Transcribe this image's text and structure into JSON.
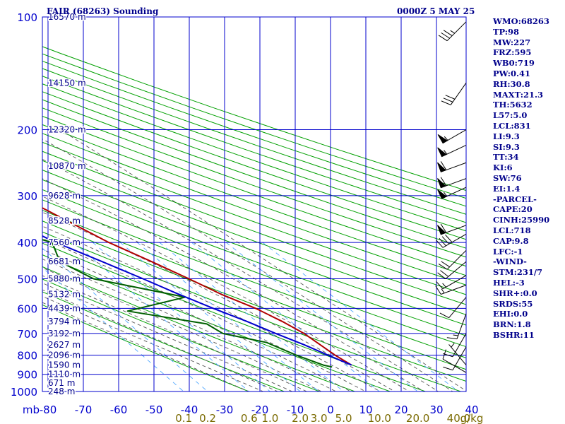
{
  "header": {
    "title": "FAIR (68263) Sounding",
    "timestamp": "0000Z  5 MAY 25"
  },
  "indices": [
    "WMO:68263",
    "TP:98",
    "MW:227",
    "FRZ:595",
    "WB0:719",
    "PW:0.41",
    "RH:30.8",
    "MAXT:21.3",
    "TH:5632",
    "L57:5.0",
    "LCL:831",
    "LI:9.3",
    "SI:9.3",
    "TT:34",
    "KI:6",
    "SW:76",
    "EI:1.4",
    "-PARCEL-",
    "CAPE:20",
    "CINH:25990",
    "LCL:718",
    "CAP:9.8",
    "LFC:-1",
    "-WIND-",
    "STM:231/7",
    "HEL:-3",
    "SHR+:0.0",
    "SRDS:55",
    "EHI:0.0",
    "BRN:1.8",
    "BSHR:11"
  ],
  "colors": {
    "grid": "#0000cd",
    "dry_adiabat": "#00a000",
    "moist_adiabat": "#555555",
    "mixing_ratio": "#4da6ff",
    "temperature": "#b00000",
    "dewpoint": "#006000",
    "parcel": "#0000cc",
    "text": "#00008b",
    "mixing_label": "#7a6a00"
  },
  "chart_data": {
    "type": "skew-t",
    "x_unit_label": "mb",
    "temperature_ticks": [
      -80,
      -70,
      -60,
      -50,
      -40,
      -30,
      -20,
      -10,
      0,
      10,
      20,
      30,
      40
    ],
    "temperature_tick_labels": [
      "-80",
      "-70",
      "-60",
      "-50",
      "-40",
      "-30",
      "-20",
      "-10",
      "0",
      "10",
      "20",
      "30",
      "40"
    ],
    "pressure_ticks": [
      100,
      200,
      300,
      400,
      500,
      600,
      700,
      800,
      900,
      1000
    ],
    "pressure_tick_labels": [
      "100",
      "200",
      "300",
      "400",
      "500",
      "600",
      "700",
      "800",
      "900",
      "1000"
    ],
    "pressure_range_mb": [
      100,
      1000
    ],
    "height_labels": [
      {
        "p": 100,
        "label": "16570 m"
      },
      {
        "p": 150,
        "label": "14150 m"
      },
      {
        "p": 200,
        "label": "12320 m"
      },
      {
        "p": 250,
        "label": "10870 m"
      },
      {
        "p": 300,
        "label": "9628 m"
      },
      {
        "p": 350,
        "label": "8528 m"
      },
      {
        "p": 400,
        "label": "7560 m"
      },
      {
        "p": 450,
        "label": "6681 m"
      },
      {
        "p": 500,
        "label": "5880 m"
      },
      {
        "p": 550,
        "label": "5132 m"
      },
      {
        "p": 600,
        "label": "4439 m"
      },
      {
        "p": 650,
        "label": "3794 m"
      },
      {
        "p": 700,
        "label": "3192 m"
      },
      {
        "p": 750,
        "label": "2627 m"
      },
      {
        "p": 800,
        "label": "2096 m"
      },
      {
        "p": 850,
        "label": "1590 m"
      },
      {
        "p": 900,
        "label": "1110 m"
      },
      {
        "p": 950,
        "label": "671 m"
      },
      {
        "p": 1000,
        "label": "248 m"
      }
    ],
    "mixing_ratio_labels": [
      {
        "w": 0.1,
        "label": "0.1"
      },
      {
        "w": 0.2,
        "label": "0.2"
      },
      {
        "w": 0.6,
        "label": "0.6"
      },
      {
        "w": 1.0,
        "label": "1.0"
      },
      {
        "w": 2.0,
        "label": "2.0"
      },
      {
        "w": 3.0,
        "label": "3.0"
      },
      {
        "w": 5.0,
        "label": "5.0"
      },
      {
        "w": 10.0,
        "label": "10.0"
      },
      {
        "w": 20.0,
        "label": "20.0"
      },
      {
        "w": 40.0,
        "label": "40.0"
      }
    ],
    "mixing_ratio_unit": "g/kg",
    "series": [
      {
        "name": "temperature",
        "points": [
          [
            100,
            -81
          ],
          [
            160,
            -56
          ],
          [
            200,
            -53
          ],
          [
            250,
            -45
          ],
          [
            300,
            -36
          ],
          [
            350,
            -29
          ],
          [
            400,
            -23
          ],
          [
            450,
            -16
          ],
          [
            500,
            -10
          ],
          [
            550,
            -5
          ],
          [
            600,
            1
          ],
          [
            650,
            5
          ],
          [
            700,
            8
          ],
          [
            800,
            11
          ],
          [
            850,
            13
          ]
        ]
      },
      {
        "name": "dewpoint",
        "points": [
          [
            160,
            -67
          ],
          [
            200,
            -61
          ],
          [
            250,
            -55
          ],
          [
            300,
            -45
          ],
          [
            350,
            -55
          ],
          [
            400,
            -39
          ],
          [
            450,
            -42
          ],
          [
            500,
            -37
          ],
          [
            560,
            -16
          ],
          [
            610,
            -36
          ],
          [
            660,
            -17
          ],
          [
            700,
            -15
          ],
          [
            740,
            -5
          ],
          [
            800,
            0
          ],
          [
            850,
            5
          ],
          [
            860,
            7
          ]
        ]
      },
      {
        "name": "parcel",
        "points": [
          [
            170,
            -78
          ],
          [
            200,
            -72
          ],
          [
            250,
            -63
          ],
          [
            300,
            -55
          ],
          [
            350,
            -45
          ],
          [
            400,
            -38
          ],
          [
            450,
            -30
          ],
          [
            500,
            -23
          ],
          [
            550,
            -17
          ],
          [
            600,
            -11
          ],
          [
            650,
            -5
          ],
          [
            700,
            0
          ],
          [
            750,
            5
          ],
          [
            800,
            9
          ],
          [
            850,
            13
          ]
        ]
      }
    ],
    "wind_barbs": [
      {
        "p": 103,
        "dir": 225,
        "spd": 35
      },
      {
        "p": 150,
        "dir": 215,
        "spd": 30
      },
      {
        "p": 200,
        "dir": 240,
        "spd": 55
      },
      {
        "p": 220,
        "dir": 245,
        "spd": 55
      },
      {
        "p": 245,
        "dir": 250,
        "spd": 60
      },
      {
        "p": 270,
        "dir": 250,
        "spd": 60
      },
      {
        "p": 285,
        "dir": 245,
        "spd": 55
      },
      {
        "p": 360,
        "dir": 250,
        "spd": 60
      },
      {
        "p": 380,
        "dir": 240,
        "spd": 40
      },
      {
        "p": 420,
        "dir": 225,
        "spd": 20
      },
      {
        "p": 450,
        "dir": 230,
        "spd": 20
      },
      {
        "p": 490,
        "dir": 240,
        "spd": 15
      },
      {
        "p": 520,
        "dir": 250,
        "spd": 15
      },
      {
        "p": 560,
        "dir": 220,
        "spd": 10
      },
      {
        "p": 620,
        "dir": 200,
        "spd": 15
      },
      {
        "p": 700,
        "dir": 210,
        "spd": 10
      },
      {
        "p": 760,
        "dir": 210,
        "spd": 10
      },
      {
        "p": 850,
        "dir": 320,
        "spd": 5
      },
      {
        "p": 890,
        "dir": 300,
        "spd": 10
      }
    ]
  }
}
